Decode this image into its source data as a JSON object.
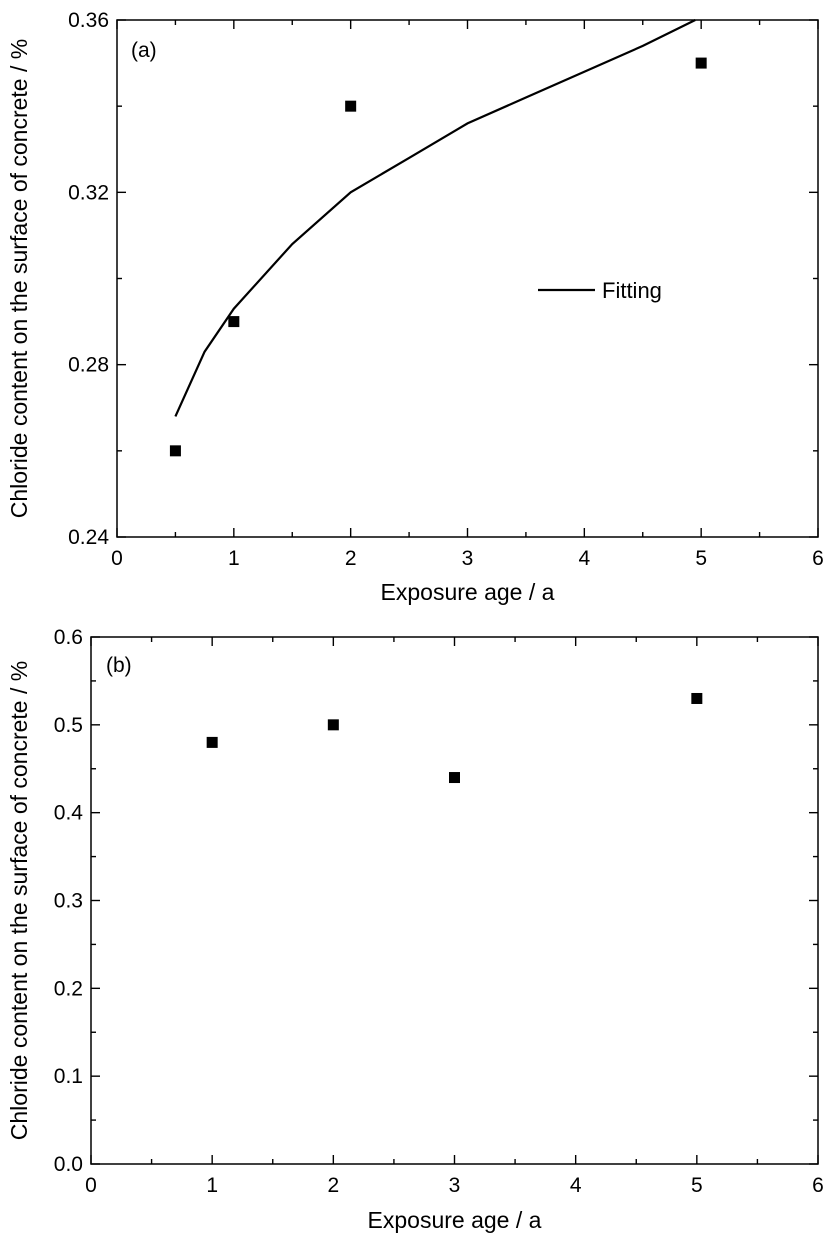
{
  "chart_data": [
    {
      "type": "scatter",
      "panel_label": "(a)",
      "xlabel": "Exposure age / a",
      "ylabel": "Chloride content on the surface of concrete / %",
      "xlim": [
        0,
        6
      ],
      "ylim": [
        0.24,
        0.36
      ],
      "x_ticks": [
        "0",
        "1",
        "2",
        "3",
        "4",
        "5",
        "6"
      ],
      "y_ticks": [
        "0.24",
        "0.28",
        "0.32",
        "0.36"
      ],
      "series": [
        {
          "type": "scatter",
          "marker": "square",
          "x": [
            0.5,
            1,
            2,
            5
          ],
          "y": [
            0.26,
            0.29,
            0.34,
            0.35
          ]
        },
        {
          "type": "line",
          "name": "Fitting",
          "x": [
            0.5,
            0.75,
            1,
            1.5,
            2,
            2.5,
            3,
            3.5,
            4,
            4.5,
            4.95
          ],
          "y": [
            0.268,
            0.283,
            0.293,
            0.308,
            0.32,
            0.328,
            0.336,
            0.342,
            0.348,
            0.354,
            0.36
          ]
        }
      ],
      "legend": {
        "position": "center-right",
        "entries": [
          "Fitting"
        ]
      },
      "grid": false
    },
    {
      "type": "scatter",
      "panel_label": "(b)",
      "xlabel": "Exposure age / a",
      "ylabel": "Chloride content on the surface of concrete / %",
      "xlim": [
        0,
        6
      ],
      "ylim": [
        0.0,
        0.6
      ],
      "x_ticks": [
        "0",
        "1",
        "2",
        "3",
        "4",
        "5",
        "6"
      ],
      "y_ticks": [
        "0.0",
        "0.1",
        "0.2",
        "0.3",
        "0.4",
        "0.5",
        "0.6"
      ],
      "series": [
        {
          "type": "scatter",
          "marker": "square",
          "x": [
            1,
            2,
            3,
            5
          ],
          "y": [
            0.48,
            0.5,
            0.44,
            0.53
          ]
        }
      ],
      "grid": false
    }
  ]
}
